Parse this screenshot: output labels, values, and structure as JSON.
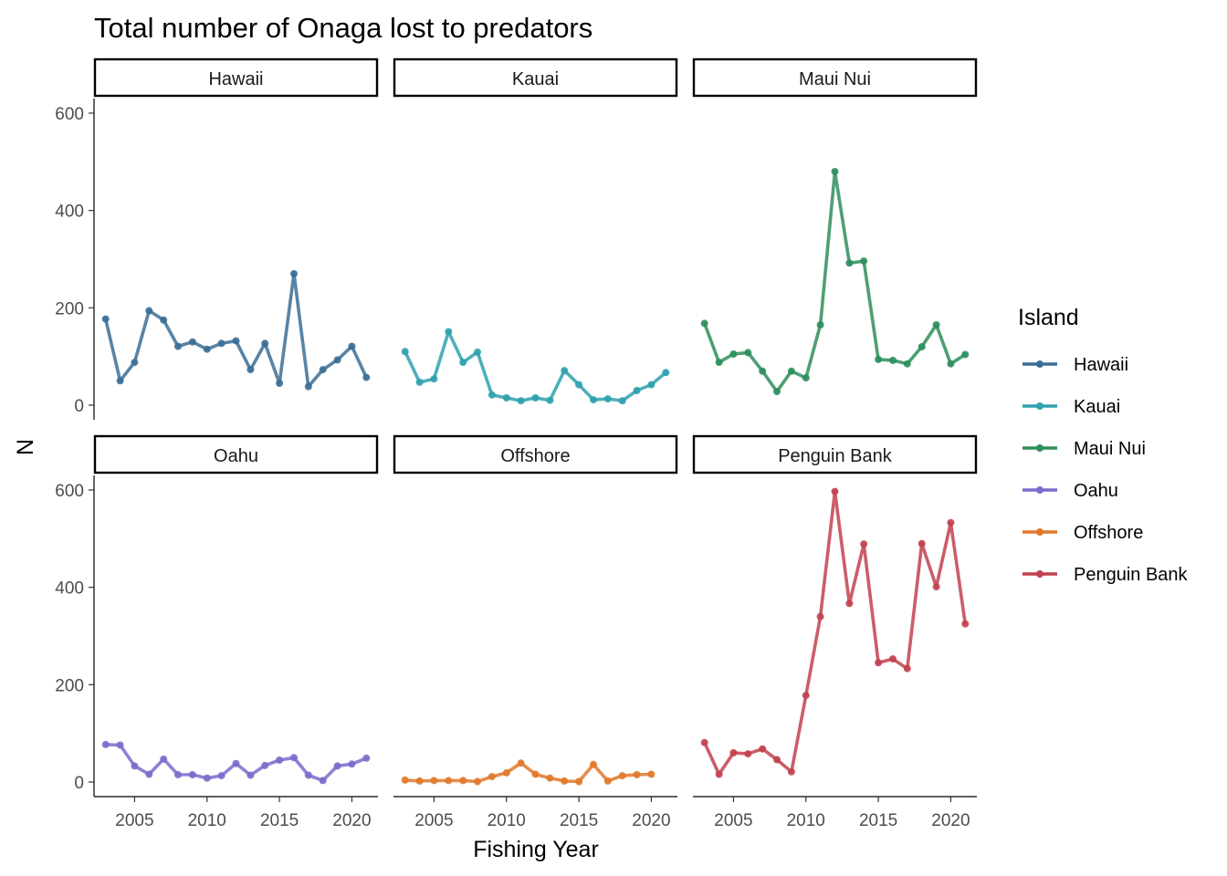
{
  "chart_data": {
    "type": "line",
    "title": "Total number of Onaga lost to predators",
    "xlabel": "Fishing Year",
    "ylabel": "N",
    "x": [
      2003,
      2004,
      2005,
      2006,
      2007,
      2008,
      2009,
      2010,
      2011,
      2012,
      2013,
      2014,
      2015,
      2016,
      2017,
      2018,
      2019,
      2020,
      2021
    ],
    "xlim": [
      2002.2,
      2021.8
    ],
    "ylim": [
      -30,
      630
    ],
    "xticks": [
      2005,
      2010,
      2015,
      2020
    ],
    "yticks": [
      0,
      200,
      400,
      600
    ],
    "grid": false,
    "facets": [
      "Hawaii",
      "Kauai",
      "Maui Nui",
      "Oahu",
      "Offshore",
      "Penguin Bank"
    ],
    "legend": {
      "title": "Island",
      "position": "right"
    },
    "series": [
      {
        "name": "Hawaii",
        "color": "#3b6e96",
        "values": [
          177,
          50,
          88,
          194,
          175,
          121,
          130,
          115,
          127,
          132,
          73,
          127,
          45,
          270,
          38,
          73,
          93,
          121,
          57
        ]
      },
      {
        "name": "Kauai",
        "color": "#2fa1ad",
        "values": [
          110,
          47,
          54,
          151,
          88,
          109,
          21,
          15,
          9,
          15,
          10,
          71,
          42,
          11,
          13,
          9,
          30,
          42,
          67
        ]
      },
      {
        "name": "Maui Nui",
        "color": "#2e8e5c",
        "values": [
          168,
          88,
          105,
          108,
          70,
          28,
          70,
          56,
          165,
          480,
          292,
          296,
          94,
          92,
          85,
          120,
          165,
          85,
          104
        ]
      },
      {
        "name": "Oahu",
        "color": "#7b6bcc",
        "values": [
          77,
          76,
          33,
          16,
          47,
          15,
          15,
          8,
          13,
          38,
          14,
          34,
          45,
          50,
          14,
          3,
          33,
          37,
          49
        ]
      },
      {
        "name": "Offshore",
        "color": "#e0782a",
        "values": [
          4,
          2,
          3,
          3,
          3,
          1,
          11,
          19,
          39,
          16,
          8,
          2,
          1,
          36,
          2,
          13,
          15,
          16,
          null
        ]
      },
      {
        "name": "Penguin Bank",
        "color": "#c2414f",
        "values": [
          81,
          16,
          60,
          58,
          68,
          46,
          21,
          178,
          340,
          597,
          367,
          489,
          245,
          253,
          233,
          490,
          401,
          533,
          325
        ]
      }
    ]
  }
}
